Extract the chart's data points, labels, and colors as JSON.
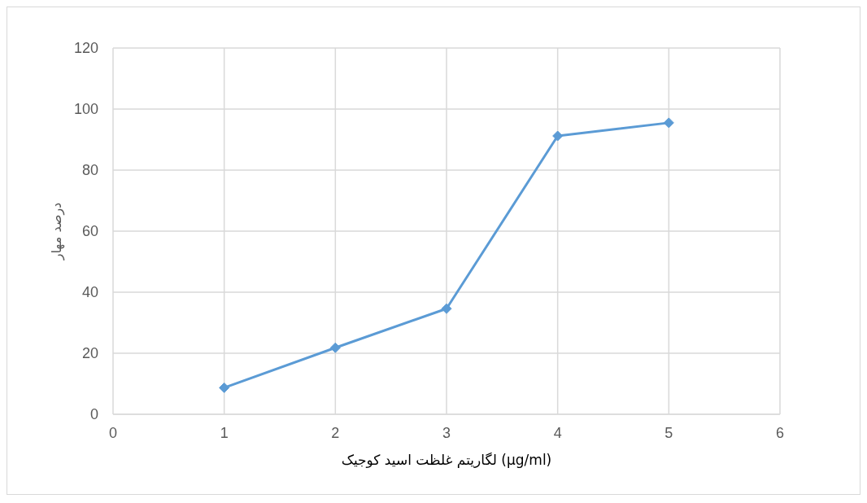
{
  "chart_data": {
    "type": "line",
    "xlabel": "لگاریتم غلظت اسید کوجیک (µg/ml)",
    "ylabel": "درصد مهار",
    "x": [
      1,
      2,
      3,
      4,
      5
    ],
    "series": [
      {
        "color": "#5b9bd5",
        "values": [
          8.7,
          21.8,
          34.6,
          91.2,
          95.5
        ]
      }
    ],
    "xlim": [
      0,
      6
    ],
    "xticks": [
      0,
      1,
      2,
      3,
      4,
      5,
      6
    ],
    "ylim": [
      0,
      120
    ],
    "yticks": [
      0,
      20,
      40,
      60,
      80,
      100,
      120
    ],
    "grid": true,
    "marker": "diamond",
    "line_style": "solid"
  }
}
